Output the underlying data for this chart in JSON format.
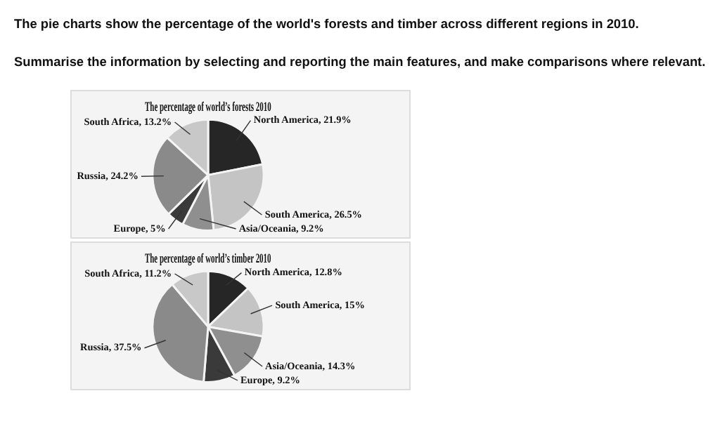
{
  "chart_data": [
    {
      "type": "pie",
      "title": "The percentage of world’s forests 2010",
      "annotations": [
        "The pie charts show the percentage of the world's forests and timber across different regions in 2010.",
        "Summarise the information by selecting and reporting the main features, and make comparisons where relevant."
      ],
      "categories": [
        "North America",
        "South America",
        "Asia/Oceania",
        "Europe",
        "Russia",
        "South Africa"
      ],
      "values": [
        21.9,
        26.5,
        9.2,
        5,
        24.2,
        13.2
      ],
      "value_labels": [
        "21.9%",
        "26.5%",
        "9.2%",
        "5%",
        "24.2%",
        "13.2%"
      ],
      "colors": [
        "#262626",
        "#c4c4c4",
        "#8f8f8f",
        "#3a3a3a",
        "#8a8a8a",
        "#c8c8c8"
      ]
    },
    {
      "type": "pie",
      "title": "The percentage of world’s timber 2010",
      "categories": [
        "North America",
        "South America",
        "Asia/Oceania",
        "Europe",
        "Russia",
        "South Africa"
      ],
      "values": [
        12.8,
        15,
        14.3,
        9.2,
        37.5,
        11.2
      ],
      "value_labels": [
        "12.8%",
        "15%",
        "14.3%",
        "9.2%",
        "37.5%",
        "11.2%"
      ],
      "colors": [
        "#262626",
        "#c4c4c4",
        "#8f8f8f",
        "#3a3a3a",
        "#8a8a8a",
        "#c8c8c8"
      ]
    }
  ]
}
